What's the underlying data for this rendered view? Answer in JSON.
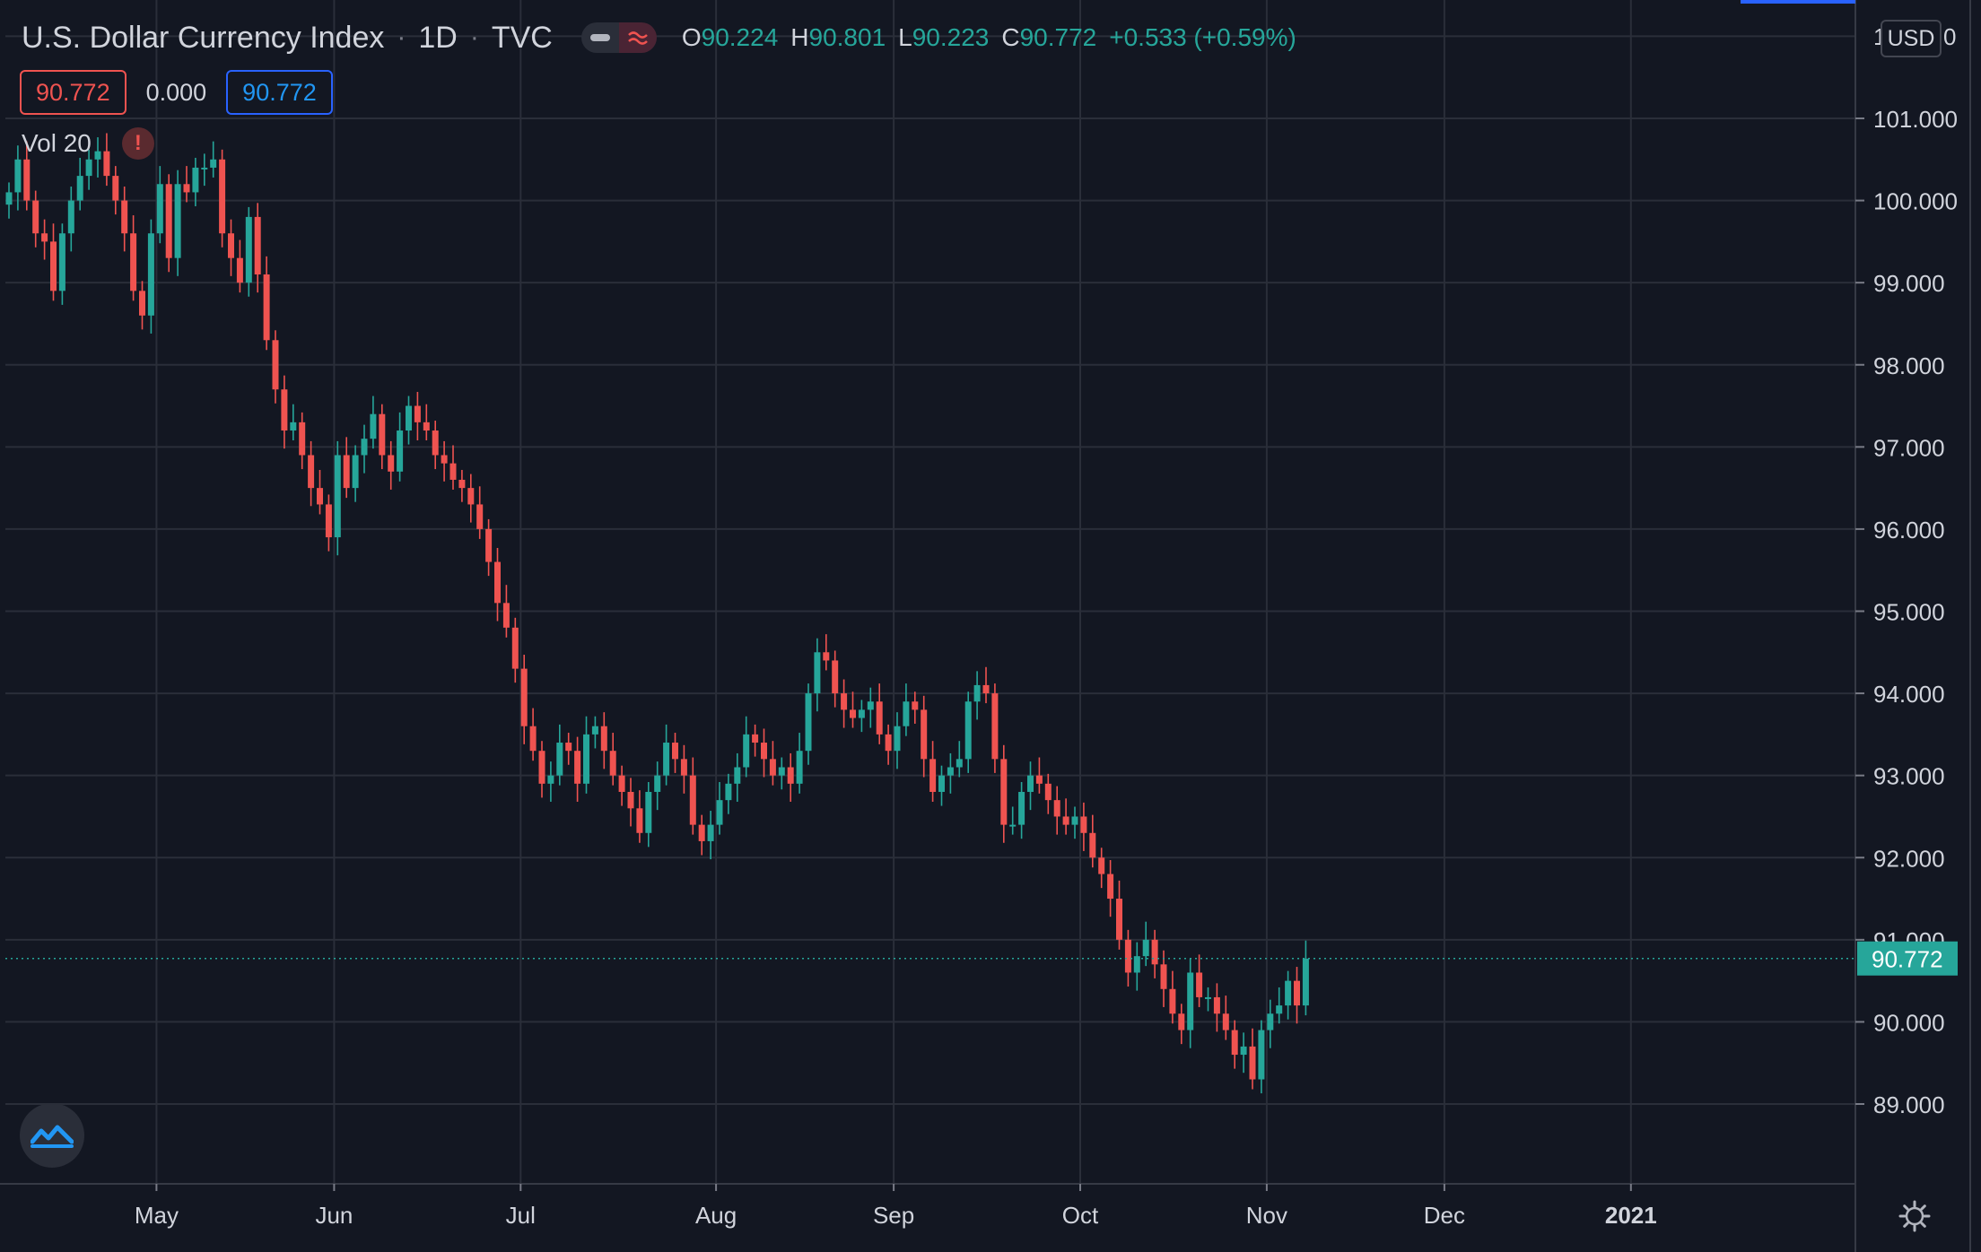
{
  "header": {
    "symbol": "U.S. Dollar Currency Index",
    "interval": "1D",
    "exchange": "TVC",
    "open_label": "O",
    "open": "90.224",
    "high_label": "H",
    "high": "90.801",
    "low_label": "L",
    "low": "90.223",
    "close_label": "C",
    "close": "90.772",
    "change": "+0.533 (+0.59%)",
    "separator": "·"
  },
  "inputs": {
    "value1": "90.772",
    "value2": "0.000",
    "value3": "90.772"
  },
  "volume_label": "Vol 20",
  "warning_icon_text": "!",
  "currency": "USD",
  "colors": {
    "background": "#131722",
    "grid": "#2a2e39",
    "up": "#26a69a",
    "down": "#ef5350",
    "text": "#d1d4dc",
    "last_price": "#26a69a"
  },
  "icons": {
    "logo": "tradingview-logo-icon",
    "settings": "gear-icon",
    "pill_left": "minus-icon",
    "pill_right": "wave-icon"
  },
  "chart_data": {
    "type": "candlestick",
    "title": "U.S. Dollar Currency Index",
    "y_range": [
      88.0,
      102.5
    ],
    "y_ticks": [
      101,
      100,
      99,
      98,
      97,
      96,
      95,
      94,
      93,
      92,
      91,
      90,
      89
    ],
    "y_tick_labels": [
      "101.000",
      "100.000",
      "99.000",
      "98.000",
      "97.000",
      "96.000",
      "95.000",
      "94.000",
      "93.000",
      "92.000",
      "91.000",
      "90.000",
      "89.000"
    ],
    "top_cut_label": "1",
    "top_cut_label_right": "0",
    "x_labels": [
      "May",
      "Jun",
      "Jul",
      "Aug",
      "Sep",
      "Oct",
      "Nov",
      "Dec",
      "2021"
    ],
    "x_label_bar_index": [
      16,
      36,
      57,
      79,
      99,
      120,
      141,
      161,
      182
    ],
    "last_price": 90.772,
    "last_price_label": "90.772",
    "grid": true,
    "closes": [
      100.1,
      100.5,
      100.0,
      99.6,
      99.5,
      98.9,
      99.6,
      100.0,
      100.3,
      100.5,
      100.6,
      100.3,
      100.0,
      99.6,
      98.9,
      98.6,
      99.6,
      100.2,
      99.3,
      100.2,
      100.1,
      100.4,
      100.4,
      100.5,
      99.6,
      99.3,
      99.0,
      99.8,
      99.1,
      98.3,
      97.7,
      97.2,
      97.3,
      96.9,
      96.5,
      96.3,
      95.9,
      96.9,
      96.5,
      96.9,
      97.1,
      97.4,
      96.9,
      96.7,
      97.2,
      97.5,
      97.3,
      97.2,
      96.9,
      96.8,
      96.6,
      96.5,
      96.3,
      96.0,
      95.6,
      95.1,
      94.8,
      94.3,
      93.6,
      93.3,
      92.9,
      93.0,
      93.4,
      93.3,
      92.9,
      93.5,
      93.6,
      93.3,
      93.0,
      92.8,
      92.6,
      92.3,
      92.8,
      93.0,
      93.4,
      93.2,
      93.0,
      92.4,
      92.2,
      92.4,
      92.7,
      92.9,
      93.1,
      93.5,
      93.4,
      93.2,
      93.0,
      93.1,
      92.9,
      93.3,
      94.0,
      94.5,
      94.4,
      94.0,
      93.8,
      93.7,
      93.8,
      93.9,
      93.5,
      93.3,
      93.6,
      93.9,
      93.8,
      93.2,
      92.8,
      93.0,
      93.1,
      93.2,
      93.9,
      94.1,
      94.0,
      93.2,
      92.4,
      92.4,
      92.8,
      93.0,
      92.9,
      92.7,
      92.5,
      92.4,
      92.5,
      92.3,
      92.0,
      91.8,
      91.5,
      91.0,
      90.6,
      90.8,
      91.0,
      90.7,
      90.4,
      90.1,
      89.9,
      90.6,
      90.3,
      90.3,
      90.1,
      89.9,
      89.6,
      89.7,
      89.3,
      89.9,
      90.1,
      90.2,
      90.5,
      90.2,
      90.77
    ]
  }
}
